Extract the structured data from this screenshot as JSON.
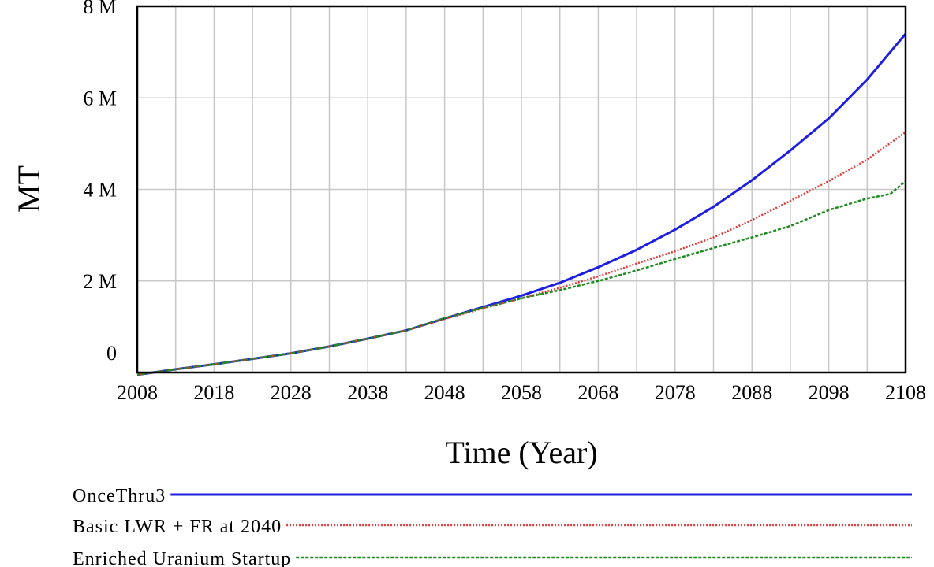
{
  "chart_data": {
    "type": "line",
    "title": "",
    "xlabel": "Time (Year)",
    "ylabel": "MT",
    "xlim": [
      2008,
      2108
    ],
    "ylim": [
      0,
      8000000
    ],
    "x_ticks": [
      2008,
      2018,
      2028,
      2038,
      2048,
      2058,
      2068,
      2078,
      2088,
      2098,
      2108
    ],
    "x_tick_labels": [
      "2008",
      "2018",
      "2028",
      "2038",
      "2048",
      "2058",
      "2068",
      "2078",
      "2088",
      "2098",
      "2108"
    ],
    "y_ticks": [
      0,
      2000000,
      4000000,
      6000000,
      8000000
    ],
    "y_tick_labels": [
      "0",
      "2 M",
      "4 M",
      "6 M",
      "8 M"
    ],
    "grid": true,
    "legend_position": "bottom",
    "series": [
      {
        "name": "OnceThru3",
        "color": "#1f1fe0",
        "style": "solid",
        "x": [
          2008,
          2013,
          2018,
          2023,
          2028,
          2033,
          2038,
          2043,
          2048,
          2053,
          2058,
          2063,
          2068,
          2073,
          2078,
          2083,
          2088,
          2093,
          2098,
          2103,
          2108
        ],
        "y": [
          -50000,
          70000,
          180000,
          300000,
          420000,
          570000,
          740000,
          920000,
          1180000,
          1430000,
          1680000,
          1960000,
          2300000,
          2680000,
          3120000,
          3620000,
          4200000,
          4850000,
          5550000,
          6400000,
          7400000
        ]
      },
      {
        "name": "Basic LWR + FR at 2040",
        "color": "#e03a3a",
        "style": "dotted",
        "x": [
          2008,
          2013,
          2018,
          2023,
          2028,
          2033,
          2038,
          2043,
          2048,
          2053,
          2058,
          2063,
          2068,
          2073,
          2078,
          2083,
          2088,
          2093,
          2098,
          2103,
          2108
        ],
        "y": [
          -50000,
          70000,
          180000,
          300000,
          420000,
          570000,
          740000,
          920000,
          1170000,
          1400000,
          1620000,
          1850000,
          2100000,
          2380000,
          2650000,
          2950000,
          3330000,
          3750000,
          4180000,
          4650000,
          5250000
        ]
      },
      {
        "name": "Enriched Uranium Startup",
        "color": "#1f8a1f",
        "style": "dashed",
        "x": [
          2008,
          2013,
          2018,
          2023,
          2028,
          2033,
          2038,
          2043,
          2048,
          2053,
          2058,
          2063,
          2068,
          2073,
          2078,
          2083,
          2088,
          2093,
          2098,
          2103,
          2106,
          2108
        ],
        "y": [
          -50000,
          70000,
          180000,
          300000,
          420000,
          570000,
          740000,
          920000,
          1190000,
          1410000,
          1620000,
          1800000,
          2000000,
          2230000,
          2480000,
          2720000,
          2950000,
          3200000,
          3550000,
          3800000,
          3900000,
          4180000
        ]
      }
    ]
  }
}
